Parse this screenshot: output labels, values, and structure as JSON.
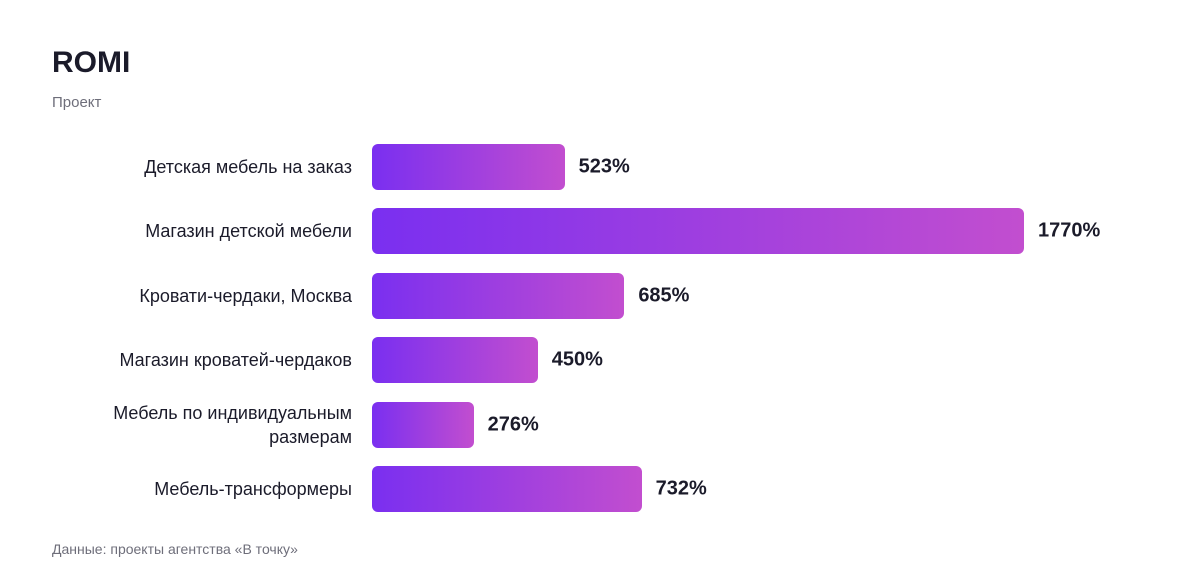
{
  "chart_data": {
    "type": "bar",
    "orientation": "horizontal",
    "title": "ROMI",
    "subtitle": "Проект",
    "categories": [
      "Детская мебель на заказ",
      "Магазин детской мебели",
      "Кровати-чердаки, Москва",
      "Магазин кроватей-чердаков",
      "Мебель по индивидуальным размерам",
      "Мебель-трансформеры"
    ],
    "values": [
      523,
      1770,
      685,
      450,
      276,
      732
    ],
    "value_labels": [
      "523%",
      "1770%",
      "685%",
      "450%",
      "276%",
      "732%"
    ],
    "source": "Данные: проекты агентства «В точку»"
  }
}
